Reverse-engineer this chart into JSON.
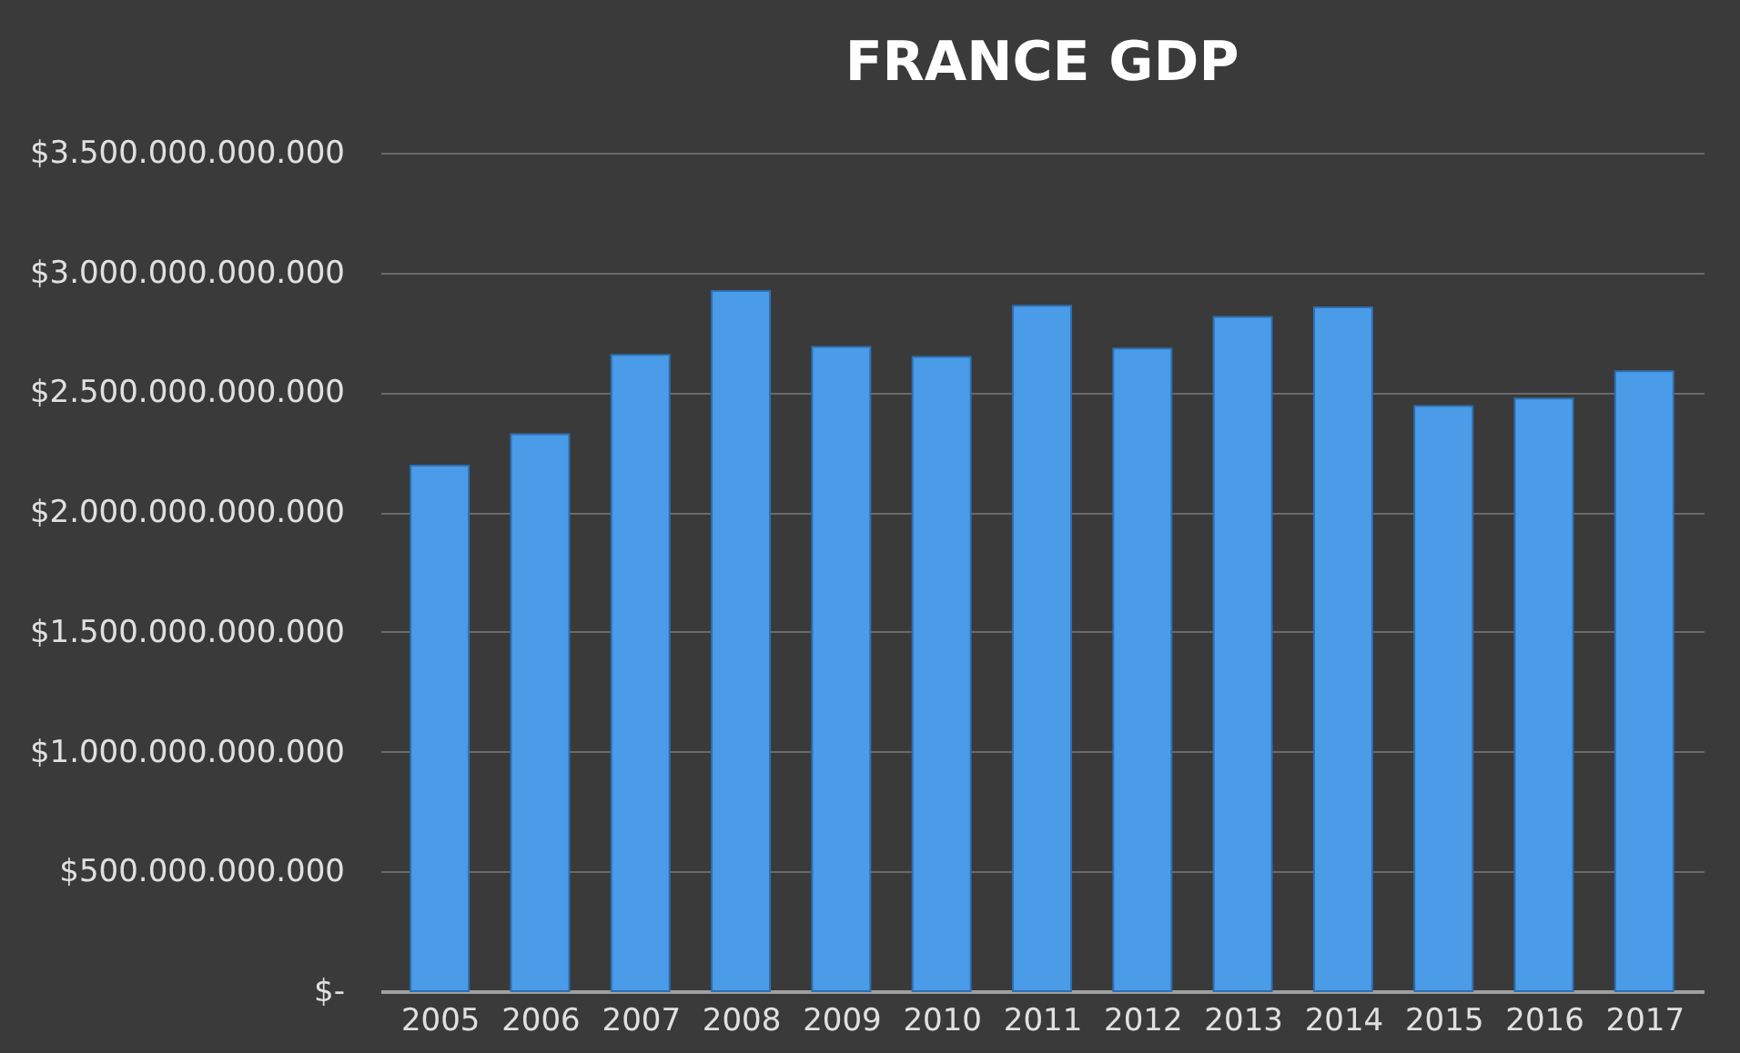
{
  "chart_data": {
    "type": "bar",
    "title": "FRANCE GDP",
    "categories": [
      "2005",
      "2006",
      "2007",
      "2008",
      "2009",
      "2010",
      "2011",
      "2012",
      "2013",
      "2014",
      "2015",
      "2016",
      "2017"
    ],
    "values": [
      2194000000000,
      2325000000000,
      2656000000000,
      2923000000000,
      2690000000000,
      2648000000000,
      2861000000000,
      2683000000000,
      2815000000000,
      2855000000000,
      2443000000000,
      2474000000000,
      2588000000000
    ],
    "color": "#4a9be8",
    "ylim": [
      0,
      3500000000000
    ],
    "yticks": [
      {
        "value": 0,
        "label": "$-"
      },
      {
        "value": 500000000000,
        "label": "$500.000.000.000"
      },
      {
        "value": 1000000000000,
        "label": "$1.000.000.000.000"
      },
      {
        "value": 1500000000000,
        "label": "$1.500.000.000.000"
      },
      {
        "value": 2000000000000,
        "label": "$2.000.000.000.000"
      },
      {
        "value": 2500000000000,
        "label": "$2.500.000.000.000"
      },
      {
        "value": 3000000000000,
        "label": "$3.000.000.000.000"
      },
      {
        "value": 3500000000000,
        "label": "$3.500.000.000.000"
      }
    ],
    "grid": "y"
  }
}
